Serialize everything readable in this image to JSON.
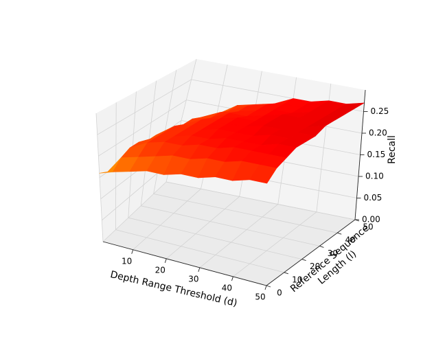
{
  "chart_data": {
    "type": "surface3d",
    "title": "",
    "xlabel": "Depth Range Threshold (d)",
    "ylabel": "Reference Sequence Length (l)",
    "zlabel": "Recall",
    "xlim": [
      1,
      50
    ],
    "ylim": [
      0,
      50
    ],
    "zlim": [
      0,
      0.3
    ],
    "x_ticks": [
      "10",
      "20",
      "30",
      "40",
      "50"
    ],
    "y_ticks": [
      "0",
      "10",
      "20",
      "30",
      "40",
      "50"
    ],
    "z_ticks": [
      "0.00",
      "0.05",
      "0.10",
      "0.15",
      "0.20",
      "0.25"
    ],
    "colormap": "hot",
    "grid": true,
    "x": [
      1,
      5,
      10,
      15,
      20,
      25,
      30,
      35,
      40,
      45,
      50
    ],
    "y": [
      0,
      5,
      10,
      15,
      20,
      25,
      30,
      35,
      40,
      45,
      50
    ],
    "z": [
      [
        0.16,
        0.17,
        0.18,
        0.19,
        0.19,
        0.2,
        0.2,
        0.21,
        0.21,
        0.22,
        0.22
      ],
      [
        0.15,
        0.19,
        0.2,
        0.21,
        0.22,
        0.22,
        0.23,
        0.23,
        0.24,
        0.24,
        0.24
      ],
      [
        0.15,
        0.2,
        0.22,
        0.23,
        0.23,
        0.24,
        0.24,
        0.25,
        0.25,
        0.25,
        0.25
      ],
      [
        0.14,
        0.2,
        0.22,
        0.23,
        0.24,
        0.24,
        0.25,
        0.25,
        0.25,
        0.26,
        0.26
      ],
      [
        0.13,
        0.19,
        0.22,
        0.23,
        0.24,
        0.25,
        0.25,
        0.25,
        0.26,
        0.26,
        0.26
      ],
      [
        0.12,
        0.19,
        0.22,
        0.23,
        0.24,
        0.25,
        0.25,
        0.26,
        0.26,
        0.26,
        0.26
      ],
      [
        0.11,
        0.18,
        0.21,
        0.23,
        0.24,
        0.25,
        0.25,
        0.26,
        0.26,
        0.26,
        0.27
      ],
      [
        0.1,
        0.17,
        0.21,
        0.22,
        0.24,
        0.24,
        0.25,
        0.26,
        0.26,
        0.26,
        0.27
      ],
      [
        0.09,
        0.16,
        0.2,
        0.22,
        0.23,
        0.24,
        0.25,
        0.25,
        0.26,
        0.26,
        0.27
      ],
      [
        0.07,
        0.15,
        0.19,
        0.21,
        0.23,
        0.24,
        0.25,
        0.25,
        0.26,
        0.26,
        0.27
      ],
      [
        0.06,
        0.13,
        0.18,
        0.21,
        0.22,
        0.23,
        0.25,
        0.25,
        0.26,
        0.26,
        0.27
      ]
    ]
  }
}
